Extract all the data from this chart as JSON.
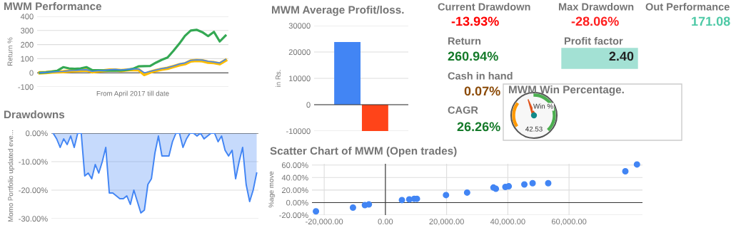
{
  "chart_data": [
    {
      "type": "line",
      "title": "MWM Performance",
      "xlabel": "From April 2017 till date",
      "ylabel": "Return %",
      "categories": [
        null,
        null,
        null,
        null,
        null,
        null,
        null,
        null,
        null,
        null,
        null,
        null,
        null,
        null,
        null,
        null,
        null,
        null,
        null,
        null,
        null,
        null,
        null,
        null,
        null,
        null,
        null,
        null,
        null,
        null,
        null,
        null,
        null
      ],
      "series": [
        {
          "color": "#4285f4",
          "values": [
            0,
            3,
            6,
            8,
            10,
            14,
            16,
            20,
            22,
            10,
            15,
            17,
            22,
            24,
            20,
            24,
            27,
            27,
            0,
            10,
            20,
            30,
            36,
            48,
            62,
            70,
            88,
            92,
            90,
            82,
            76,
            70,
            95
          ]
        },
        {
          "color": "#34a853",
          "values": [
            0,
            3,
            8,
            15,
            40,
            31,
            28,
            31,
            40,
            19,
            18,
            17,
            16,
            15,
            17,
            20,
            28,
            46,
            47,
            48,
            72,
            92,
            108,
            155,
            205,
            262,
            300,
            305,
            288,
            260,
            290,
            222,
            264
          ]
        },
        {
          "color": "#fbbc04",
          "values": [
            0,
            2,
            5,
            7,
            8,
            12,
            14,
            17,
            19,
            7,
            12,
            15,
            19,
            20,
            16,
            20,
            23,
            22,
            -12,
            5,
            16,
            25,
            32,
            44,
            56,
            64,
            84,
            88,
            85,
            75,
            72,
            64,
            88
          ]
        }
      ],
      "ylim": [
        -100,
        400
      ],
      "yticks": [
        -100,
        0,
        100,
        200,
        300,
        400
      ],
      "grid": "y"
    },
    {
      "type": "area",
      "title": "Drawdowns",
      "ylabel": "Momo Portfolio updated eve...",
      "categories": [
        null,
        null,
        null,
        null,
        null,
        null,
        null,
        null,
        null,
        null,
        null,
        null,
        null,
        null,
        null,
        null,
        null,
        null,
        null,
        null,
        null,
        null,
        null,
        null,
        null,
        null,
        null,
        null,
        null,
        null,
        null,
        null,
        null,
        null,
        null,
        null,
        null,
        null,
        null,
        null,
        null,
        null,
        null,
        null,
        null,
        null,
        null,
        null,
        null,
        null,
        null,
        null,
        null,
        null,
        null,
        null,
        null,
        null,
        null
      ],
      "series": [
        {
          "color": "#4285f4",
          "values": [
            0,
            -2,
            -5,
            -2,
            -4,
            -1,
            -5,
            0,
            0,
            -15,
            -14,
            -16,
            -11,
            -14,
            -10,
            -5,
            -21,
            -21,
            -22,
            -23,
            -23,
            -22,
            -25,
            -20,
            -24,
            -28,
            -27,
            -18,
            -16,
            -7,
            -1,
            -8,
            -8,
            -8,
            -3,
            0,
            0,
            -5,
            -2,
            0,
            0,
            -1,
            0,
            -2,
            -1,
            0,
            0,
            -3,
            -1,
            -6,
            -8,
            -6,
            -16,
            -10,
            -5,
            -18,
            -24,
            -20,
            -14
          ]
        }
      ],
      "ylim": [
        -30,
        0
      ],
      "yticks": [
        {
          "value": -30,
          "label": "-30.00%"
        },
        {
          "value": -20,
          "label": "-20.00%"
        },
        {
          "value": -10,
          "label": "-10.00%"
        },
        {
          "value": 0,
          "label": "0.00%"
        }
      ],
      "grid": "y"
    },
    {
      "type": "bar",
      "title": "MWM Average Profit/loss.",
      "ylabel": "in Rs.",
      "categories": [
        null,
        null
      ],
      "values": [
        23800,
        -10000
      ],
      "colors": [
        "#4285f4",
        "#ff4419"
      ],
      "ylim": [
        -10000,
        30000
      ],
      "yticks": [
        -10000,
        0,
        10000,
        20000,
        30000
      ],
      "grid": "y"
    },
    {
      "type": "other",
      "annotations": [
        "Current Drawdown",
        "-13.93%",
        "Max Drawdown",
        "-28.06%",
        "Out Performance",
        "171.08",
        "Return",
        "260.94%",
        "Profit factor",
        "2.40",
        "Cash in hand",
        "0.07%",
        "CAGR",
        "26.26%"
      ]
    },
    {
      "type": "other",
      "title": "MWM Win Percentage.",
      "annotations": [
        "Win %"
      ],
      "values": [
        42.53
      ],
      "data_labels": true
    },
    {
      "type": "scatter",
      "title": "Scatter Chart of MWM (Open trades)",
      "ylabel": "%age move",
      "x": [
        -22700,
        -10600,
        -6700,
        -5400,
        5400,
        7800,
        9400,
        10300,
        19800,
        26700,
        35300,
        36100,
        39200,
        40300,
        45400,
        48100,
        53200,
        78400,
        82200
      ],
      "values": [
        -14,
        -8,
        -4,
        -3,
        4,
        5,
        6,
        6,
        12,
        16,
        24,
        22,
        25,
        26,
        29,
        31,
        31,
        50,
        61
      ],
      "color": "#4285f4",
      "xlim": [
        -24000,
        84000
      ],
      "xticks": [
        {
          "value": -20000,
          "label": "-20,000.00"
        },
        {
          "value": 0,
          "label": "0.00"
        },
        {
          "value": 20000,
          "label": "20,000.00"
        },
        {
          "value": 40000,
          "label": "40,000.00"
        },
        {
          "value": 60000,
          "label": "60,000.00"
        }
      ],
      "ylim": [
        -20,
        62
      ],
      "yticks": [
        {
          "value": -20,
          "label": "-20.00%"
        },
        {
          "value": 0,
          "label": "0.00%"
        },
        {
          "value": 20,
          "label": "20.00%"
        },
        {
          "value": 40,
          "label": "40.00%"
        },
        {
          "value": 60,
          "label": "60.00%"
        }
      ],
      "grid": true
    }
  ]
}
